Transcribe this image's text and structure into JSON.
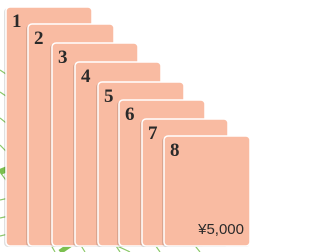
{
  "cards": [
    {
      "label": "1"
    },
    {
      "label": "2"
    },
    {
      "label": "3"
    },
    {
      "label": "4"
    },
    {
      "label": "5"
    },
    {
      "label": "6"
    },
    {
      "label": "7"
    },
    {
      "label": "8"
    }
  ],
  "price": "¥5,000"
}
